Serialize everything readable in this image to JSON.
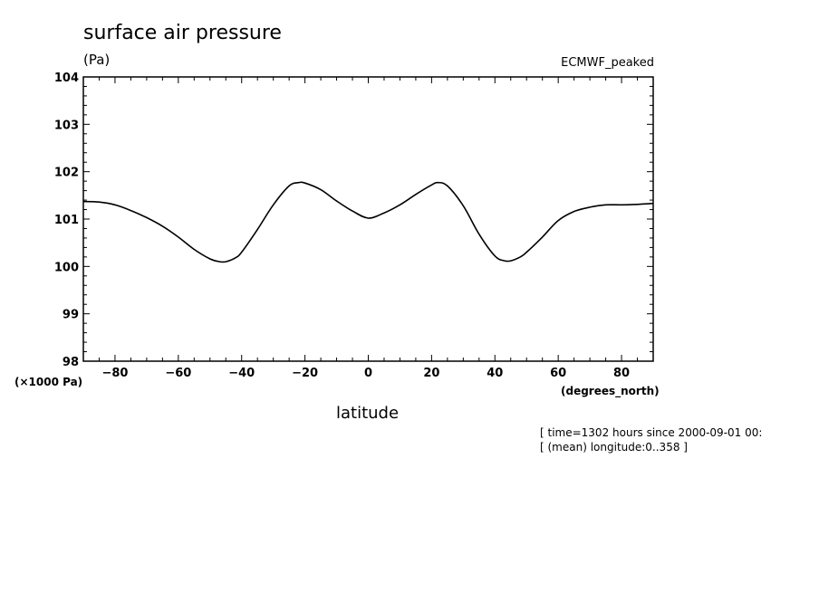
{
  "chart_data": {
    "type": "line",
    "title": "surface air pressure",
    "y_units": "(Pa)",
    "y_scale_note": "(x1000 Pa)",
    "dataset": "ECMWF_peaked",
    "xlabel": "latitude",
    "x_units": "(degrees_north)",
    "info": [
      "[ time=1302 hours since 2000-09-01 00:",
      "[ (mean) longitude:0..358 ]"
    ],
    "xlim": [
      -90,
      90
    ],
    "ylim": [
      98,
      104
    ],
    "x_ticks": [
      -80,
      -60,
      -40,
      -20,
      0,
      20,
      40,
      60,
      80
    ],
    "x_tick_labels": [
      "-80",
      "-60",
      "-40",
      "-20",
      "0",
      "20",
      "40",
      "60",
      "80"
    ],
    "y_ticks": [
      98,
      99,
      100,
      101,
      102,
      103,
      104
    ],
    "y_tick_labels": [
      "98",
      "99",
      "100",
      "101",
      "102",
      "103",
      "104"
    ],
    "grid": false,
    "series": [
      {
        "x": [
          -90,
          -85,
          -80,
          -75,
          -70,
          -65,
          -60,
          -55,
          -50,
          -47,
          -45,
          -42,
          -40,
          -35,
          -30,
          -25,
          -22,
          -20,
          -15,
          -10,
          -5,
          0,
          5,
          10,
          15,
          20,
          22,
          25,
          30,
          35,
          40,
          43,
          45,
          48,
          50,
          55,
          60,
          65,
          70,
          75,
          80,
          85,
          90
        ],
        "y": [
          101.37,
          101.36,
          101.3,
          101.18,
          101.03,
          100.85,
          100.62,
          100.36,
          100.16,
          100.1,
          100.1,
          100.18,
          100.3,
          100.78,
          101.3,
          101.7,
          101.77,
          101.76,
          101.62,
          101.38,
          101.17,
          101.02,
          101.13,
          101.3,
          101.52,
          101.72,
          101.77,
          101.7,
          101.28,
          100.68,
          100.22,
          100.12,
          100.12,
          100.2,
          100.3,
          100.62,
          100.97,
          101.16,
          101.25,
          101.3,
          101.3,
          101.31,
          101.33
        ]
      }
    ]
  }
}
